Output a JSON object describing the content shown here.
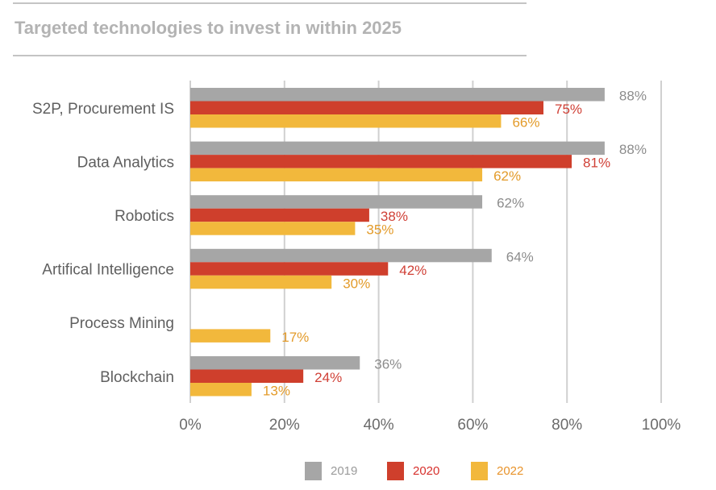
{
  "title": "Targeted technologies to invest in within 2025",
  "chart_data": {
    "type": "bar",
    "orientation": "horizontal",
    "title": "Targeted technologies to invest in within 2025",
    "xlabel": "",
    "ylabel": "",
    "xlim": [
      0,
      100
    ],
    "x_ticks": [
      "0%",
      "20%",
      "40%",
      "60%",
      "80%",
      "100%"
    ],
    "x_tick_values": [
      0,
      20,
      40,
      60,
      80,
      100
    ],
    "grid": true,
    "legend_position": "bottom-center",
    "categories": [
      "S2P, Procurement IS",
      "Data Analytics",
      "Robotics",
      "Artifical Intelligence",
      "Process Mining",
      "Blockchain"
    ],
    "series": [
      {
        "name": "2019",
        "color": "#a6a6a6",
        "label_color": "#8c8c8c",
        "values": [
          88,
          88,
          62,
          64,
          null,
          36
        ],
        "labels": [
          "88%",
          "88%",
          "62%",
          "64%",
          "",
          "36%"
        ]
      },
      {
        "name": "2020",
        "color": "#cf3f2c",
        "label_color": "#d04036",
        "values": [
          75,
          81,
          38,
          42,
          null,
          24
        ],
        "labels": [
          "75%",
          "81%",
          "38%",
          "42%",
          "",
          "24%"
        ]
      },
      {
        "name": "2022",
        "color": "#f2b83c",
        "label_color": "#e39b2a",
        "values": [
          66,
          62,
          35,
          30,
          17,
          13
        ],
        "labels": [
          "66%",
          "62%",
          "35%",
          "30%",
          "17%",
          "13%"
        ]
      }
    ]
  },
  "legend": [
    {
      "label": "2019",
      "color": "#a6a6a6",
      "text_color": "#9a9a9a"
    },
    {
      "label": "2020",
      "color": "#cf3f2c",
      "text_color": "#d7302c"
    },
    {
      "label": "2022",
      "color": "#f2b83c",
      "text_color": "#e8932a"
    }
  ]
}
